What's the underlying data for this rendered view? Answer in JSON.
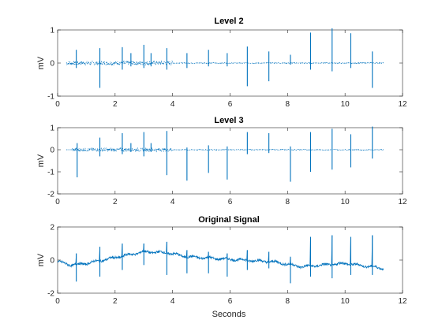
{
  "chart_data": [
    {
      "type": "line",
      "title": "Level 2",
      "xlabel": "",
      "ylabel": "mV",
      "xlim": [
        0,
        12
      ],
      "ylim": [
        -1,
        1
      ],
      "x_ticks": [
        "0",
        "2",
        "4",
        "6",
        "8",
        "10",
        "12"
      ],
      "y_ticks": [
        "-1",
        "0",
        "1"
      ],
      "grid": false,
      "color": "#0072bd",
      "x_end": 11.35,
      "baseline": 0,
      "noise_segments": [
        {
          "x_start": 0.3,
          "x_end": 4.0,
          "amplitude": 0.06
        },
        {
          "x_start": 4.0,
          "x_end": 11.35,
          "amplitude": 0.015
        }
      ],
      "spikes": [
        {
          "x": 0.65,
          "y_max": 0.4,
          "y_min": -0.15
        },
        {
          "x": 1.47,
          "y_max": 0.45,
          "y_min": -0.75
        },
        {
          "x": 2.25,
          "y_max": 0.48,
          "y_min": -0.2
        },
        {
          "x": 2.55,
          "y_max": 0.3,
          "y_min": -0.1
        },
        {
          "x": 3.0,
          "y_max": 0.55,
          "y_min": -0.15
        },
        {
          "x": 3.25,
          "y_max": 0.3,
          "y_min": -0.1
        },
        {
          "x": 3.8,
          "y_max": 0.45,
          "y_min": -0.2
        },
        {
          "x": 4.5,
          "y_max": 0.3,
          "y_min": -0.15
        },
        {
          "x": 5.25,
          "y_max": 0.4,
          "y_min": -0.1
        },
        {
          "x": 5.9,
          "y_max": 0.3,
          "y_min": -0.1
        },
        {
          "x": 6.6,
          "y_max": 0.5,
          "y_min": -0.7
        },
        {
          "x": 7.35,
          "y_max": 0.35,
          "y_min": -0.55
        },
        {
          "x": 8.1,
          "y_max": 0.25,
          "y_min": -0.05
        },
        {
          "x": 8.8,
          "y_max": 0.92,
          "y_min": -0.2
        },
        {
          "x": 9.55,
          "y_max": 1.05,
          "y_min": -0.25
        },
        {
          "x": 10.2,
          "y_max": 0.9,
          "y_min": -0.15
        },
        {
          "x": 10.95,
          "y_max": 0.35,
          "y_min": -0.75
        }
      ]
    },
    {
      "type": "line",
      "title": "Level 3",
      "xlabel": "",
      "ylabel": "mV",
      "xlim": [
        0,
        12
      ],
      "ylim": [
        -2,
        1
      ],
      "x_ticks": [
        "0",
        "2",
        "4",
        "6",
        "8",
        "10",
        "12"
      ],
      "y_ticks": [
        "-2",
        "-1",
        "0",
        "1"
      ],
      "grid": false,
      "color": "#0072bd",
      "x_end": 11.35,
      "baseline": 0,
      "noise_segments": [
        {
          "x_start": 0.5,
          "x_end": 4.0,
          "amplitude": 0.08
        },
        {
          "x_start": 4.0,
          "x_end": 11.35,
          "amplitude": 0.02
        }
      ],
      "spikes": [
        {
          "x": 0.68,
          "y_max": 0.3,
          "y_min": -1.25
        },
        {
          "x": 1.47,
          "y_max": 0.55,
          "y_min": -0.3
        },
        {
          "x": 2.25,
          "y_max": 0.75,
          "y_min": -0.2
        },
        {
          "x": 2.55,
          "y_max": 0.3,
          "y_min": -0.1
        },
        {
          "x": 3.0,
          "y_max": 0.8,
          "y_min": -0.3
        },
        {
          "x": 3.25,
          "y_max": 0.3,
          "y_min": -0.1
        },
        {
          "x": 3.8,
          "y_max": 0.85,
          "y_min": -1.15
        },
        {
          "x": 4.5,
          "y_max": 0.1,
          "y_min": -1.4
        },
        {
          "x": 5.25,
          "y_max": 0.2,
          "y_min": -1.05
        },
        {
          "x": 5.9,
          "y_max": 0.15,
          "y_min": -1.35
        },
        {
          "x": 6.6,
          "y_max": 0.8,
          "y_min": -0.2
        },
        {
          "x": 7.35,
          "y_max": 0.75,
          "y_min": -0.15
        },
        {
          "x": 8.1,
          "y_max": 0.15,
          "y_min": -1.45
        },
        {
          "x": 8.8,
          "y_max": 0.8,
          "y_min": -1.0
        },
        {
          "x": 9.55,
          "y_max": 0.95,
          "y_min": -0.9
        },
        {
          "x": 10.2,
          "y_max": 0.7,
          "y_min": -0.8
        },
        {
          "x": 10.95,
          "y_max": 1.05,
          "y_min": -0.4
        }
      ]
    },
    {
      "type": "line",
      "title": "Original Signal",
      "xlabel": "Seconds",
      "ylabel": "mV",
      "xlim": [
        0,
        12
      ],
      "ylim": [
        -2,
        2
      ],
      "x_ticks": [
        "0",
        "2",
        "4",
        "6",
        "8",
        "10",
        "12"
      ],
      "y_ticks": [
        "-2",
        "0",
        "2"
      ],
      "grid": false,
      "color": "#0072bd",
      "x_end": 11.35,
      "baseline_points": [
        [
          0,
          -0.1
        ],
        [
          0.5,
          -0.3
        ],
        [
          1.0,
          -0.2
        ],
        [
          2.0,
          0.15
        ],
        [
          3.0,
          0.5
        ],
        [
          3.8,
          0.45
        ],
        [
          4.5,
          0.2
        ],
        [
          6.0,
          0.05
        ],
        [
          7.5,
          -0.1
        ],
        [
          8.5,
          -0.4
        ],
        [
          10.0,
          -0.2
        ],
        [
          11.35,
          -0.5
        ]
      ],
      "noise_amplitude": 0.07,
      "spikes": [
        {
          "x": 0.65,
          "y_max": 0.4,
          "y_min": -1.3
        },
        {
          "x": 1.47,
          "y_max": 0.8,
          "y_min": -1.0
        },
        {
          "x": 2.25,
          "y_max": 1.0,
          "y_min": -0.6
        },
        {
          "x": 3.0,
          "y_max": 1.0,
          "y_min": -0.3
        },
        {
          "x": 3.8,
          "y_max": 1.1,
          "y_min": -0.9
        },
        {
          "x": 4.5,
          "y_max": 0.6,
          "y_min": -0.8
        },
        {
          "x": 5.25,
          "y_max": 0.5,
          "y_min": -0.8
        },
        {
          "x": 5.9,
          "y_max": 0.4,
          "y_min": -1.0
        },
        {
          "x": 6.6,
          "y_max": 0.6,
          "y_min": -0.6
        },
        {
          "x": 7.35,
          "y_max": 0.5,
          "y_min": -0.5
        },
        {
          "x": 8.1,
          "y_max": 0.2,
          "y_min": -1.4
        },
        {
          "x": 8.8,
          "y_max": 1.4,
          "y_min": -1.0
        },
        {
          "x": 9.55,
          "y_max": 1.5,
          "y_min": -1.1
        },
        {
          "x": 10.2,
          "y_max": 1.4,
          "y_min": -0.9
        },
        {
          "x": 10.95,
          "y_max": 1.5,
          "y_min": -0.9
        }
      ]
    }
  ]
}
